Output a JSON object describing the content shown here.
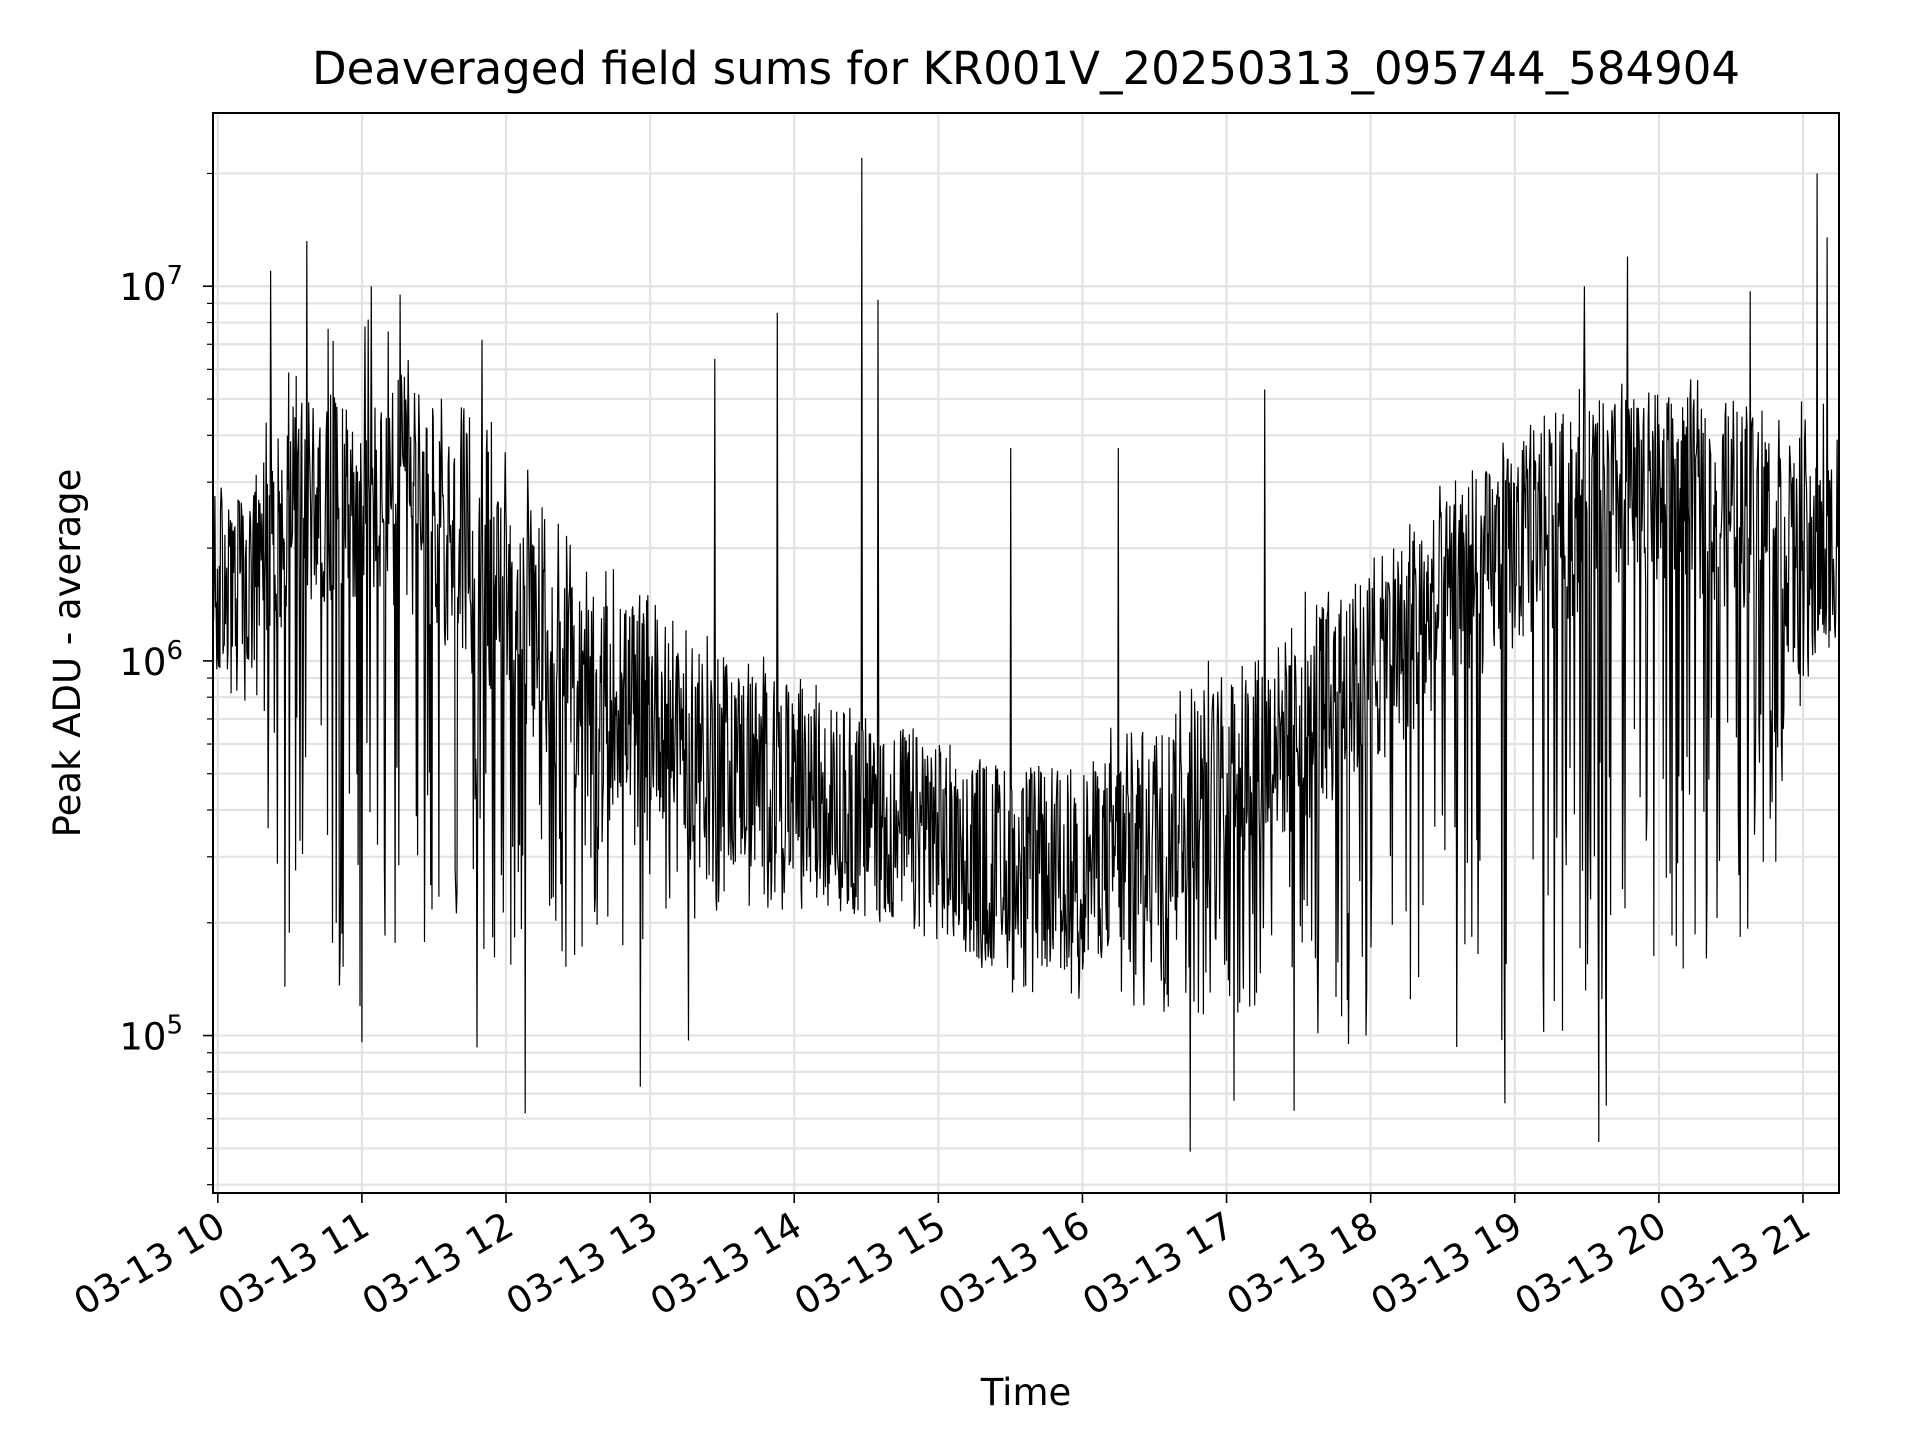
{
  "chart_data": {
    "type": "line",
    "title": "Deaveraged field sums for KR001V_20250313_095744_584904",
    "xlabel": "Time",
    "ylabel": "Peak ADU - average",
    "y_scale": "log",
    "ylim": [
      38000,
      29000000
    ],
    "xlim": [
      "2025-03-13 09:58",
      "2025-03-13 21:15"
    ],
    "x_ticks": [
      {
        "t": "2025-03-13 10:00",
        "label": "03-13 10"
      },
      {
        "t": "2025-03-13 11:00",
        "label": "03-13 11"
      },
      {
        "t": "2025-03-13 12:00",
        "label": "03-13 12"
      },
      {
        "t": "2025-03-13 13:00",
        "label": "03-13 13"
      },
      {
        "t": "2025-03-13 14:00",
        "label": "03-13 14"
      },
      {
        "t": "2025-03-13 15:00",
        "label": "03-13 15"
      },
      {
        "t": "2025-03-13 16:00",
        "label": "03-13 16"
      },
      {
        "t": "2025-03-13 17:00",
        "label": "03-13 17"
      },
      {
        "t": "2025-03-13 18:00",
        "label": "03-13 18"
      },
      {
        "t": "2025-03-13 19:00",
        "label": "03-13 19"
      },
      {
        "t": "2025-03-13 20:00",
        "label": "03-13 20"
      },
      {
        "t": "2025-03-13 21:00",
        "label": "03-13 21"
      }
    ],
    "y_ticks": [
      {
        "value": 100000,
        "base": "10",
        "exp": "5"
      },
      {
        "value": 1000000,
        "base": "10",
        "exp": "6"
      },
      {
        "value": 10000000,
        "base": "10",
        "exp": "7"
      }
    ],
    "grid": true,
    "legend": "none",
    "series": [
      {
        "color": "#000000",
        "envelope": [
          {
            "t": "2025-03-13 09:58",
            "typical": 1500000,
            "low": 1000000,
            "high": 3000000
          },
          {
            "t": "2025-03-13 10:15",
            "typical": 1500000,
            "low": 600000,
            "high": 3500000
          },
          {
            "t": "2025-03-13 10:30",
            "typical": 2600000,
            "low": 160000,
            "high": 8000000
          },
          {
            "t": "2025-03-13 11:00",
            "typical": 2800000,
            "low": 110000,
            "high": 9000000
          },
          {
            "t": "2025-03-13 11:30",
            "typical": 2200000,
            "low": 140000,
            "high": 6000000
          },
          {
            "t": "2025-03-13 12:00",
            "typical": 1400000,
            "low": 150000,
            "high": 4000000
          },
          {
            "t": "2025-03-13 12:30",
            "typical": 800000,
            "low": 150000,
            "high": 2000000
          },
          {
            "t": "2025-03-13 13:00",
            "typical": 750000,
            "low": 180000,
            "high": 1600000
          },
          {
            "t": "2025-03-13 13:30",
            "typical": 550000,
            "low": 200000,
            "high": 1300000
          },
          {
            "t": "2025-03-13 14:00",
            "typical": 450000,
            "low": 220000,
            "high": 1000000
          },
          {
            "t": "2025-03-13 14:30",
            "typical": 380000,
            "low": 200000,
            "high": 800000
          },
          {
            "t": "2025-03-13 15:00",
            "typical": 330000,
            "low": 180000,
            "high": 600000
          },
          {
            "t": "2025-03-13 15:30",
            "typical": 280000,
            "low": 130000,
            "high": 550000
          },
          {
            "t": "2025-03-13 16:00",
            "typical": 280000,
            "low": 120000,
            "high": 600000
          },
          {
            "t": "2025-03-13 16:30",
            "typical": 350000,
            "low": 110000,
            "high": 800000
          },
          {
            "t": "2025-03-13 17:00",
            "typical": 500000,
            "low": 100000,
            "high": 1100000
          },
          {
            "t": "2025-03-13 17:30",
            "typical": 650000,
            "low": 100000,
            "high": 1500000
          },
          {
            "t": "2025-03-13 18:00",
            "typical": 950000,
            "low": 90000,
            "high": 2000000
          },
          {
            "t": "2025-03-13 18:30",
            "typical": 1400000,
            "low": 90000,
            "high": 3000000
          },
          {
            "t": "2025-03-13 19:00",
            "typical": 2000000,
            "low": 85000,
            "high": 4500000
          },
          {
            "t": "2025-03-13 19:30",
            "typical": 2600000,
            "low": 110000,
            "high": 5500000
          },
          {
            "t": "2025-03-13 20:00",
            "typical": 2800000,
            "low": 130000,
            "high": 6000000
          },
          {
            "t": "2025-03-13 20:45",
            "typical": 2500000,
            "low": 200000,
            "high": 5000000
          },
          {
            "t": "2025-03-13 21:00",
            "typical": 1600000,
            "low": 800000,
            "high": 5000000
          },
          {
            "t": "2025-03-13 21:15",
            "typical": 2200000,
            "low": 1200000,
            "high": 5000000
          }
        ],
        "spikes": [
          {
            "t": "2025-03-13 10:22",
            "value": 11000000
          },
          {
            "t": "2025-03-13 10:37",
            "value": 13200000
          },
          {
            "t": "2025-03-13 10:46",
            "value": 7700000
          },
          {
            "t": "2025-03-13 11:04",
            "value": 10000000
          },
          {
            "t": "2025-03-13 11:16",
            "value": 9500000
          },
          {
            "t": "2025-03-13 11:50",
            "value": 7200000
          },
          {
            "t": "2025-03-13 13:27",
            "value": 6400000
          },
          {
            "t": "2025-03-13 13:53",
            "value": 8500000
          },
          {
            "t": "2025-03-13 14:28",
            "value": 22000000
          },
          {
            "t": "2025-03-13 14:35",
            "value": 9200000
          },
          {
            "t": "2025-03-13 15:30",
            "value": 3700000
          },
          {
            "t": "2025-03-13 16:15",
            "value": 3700000
          },
          {
            "t": "2025-03-13 17:16",
            "value": 5300000
          },
          {
            "t": "2025-03-13 19:29",
            "value": 10000000
          },
          {
            "t": "2025-03-13 19:47",
            "value": 12000000
          },
          {
            "t": "2025-03-13 20:38",
            "value": 9700000
          },
          {
            "t": "2025-03-13 21:06",
            "value": 20000000
          },
          {
            "t": "2025-03-13 21:10",
            "value": 13500000
          }
        ],
        "dips": [
          {
            "t": "2025-03-13 10:28",
            "value": 135000
          },
          {
            "t": "2025-03-13 11:00",
            "value": 96000
          },
          {
            "t": "2025-03-13 11:48",
            "value": 93000
          },
          {
            "t": "2025-03-13 12:08",
            "value": 62000
          },
          {
            "t": "2025-03-13 12:56",
            "value": 73000
          },
          {
            "t": "2025-03-13 13:16",
            "value": 97000
          },
          {
            "t": "2025-03-13 16:45",
            "value": 49000
          },
          {
            "t": "2025-03-13 17:03",
            "value": 67000
          },
          {
            "t": "2025-03-13 17:28",
            "value": 63000
          },
          {
            "t": "2025-03-13 18:56",
            "value": 66000
          },
          {
            "t": "2025-03-13 19:35",
            "value": 52000
          },
          {
            "t": "2025-03-13 19:38",
            "value": 65000
          }
        ]
      }
    ]
  }
}
